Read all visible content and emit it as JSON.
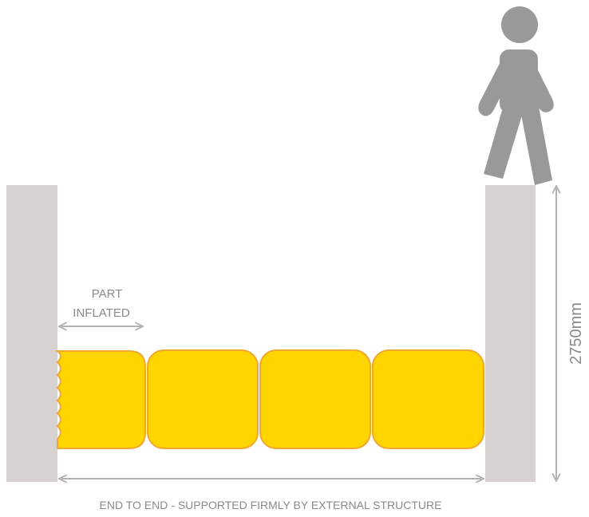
{
  "labels": {
    "part_inflated_line1": "PART",
    "part_inflated_line2": "INFLATED",
    "height": "2750mm",
    "span": "END TO END - SUPPORTED FIRMLY BY EXTERNAL STRUCTURE"
  },
  "colors": {
    "wall": "#d8d1d2",
    "bag_fill": "#ffd500",
    "bag_stroke": "#f0a830",
    "figure": "#999999",
    "dimension_line": "#b3b3b3",
    "text": "#8a8a8a"
  },
  "icons": {
    "person": "walking-person-icon"
  }
}
